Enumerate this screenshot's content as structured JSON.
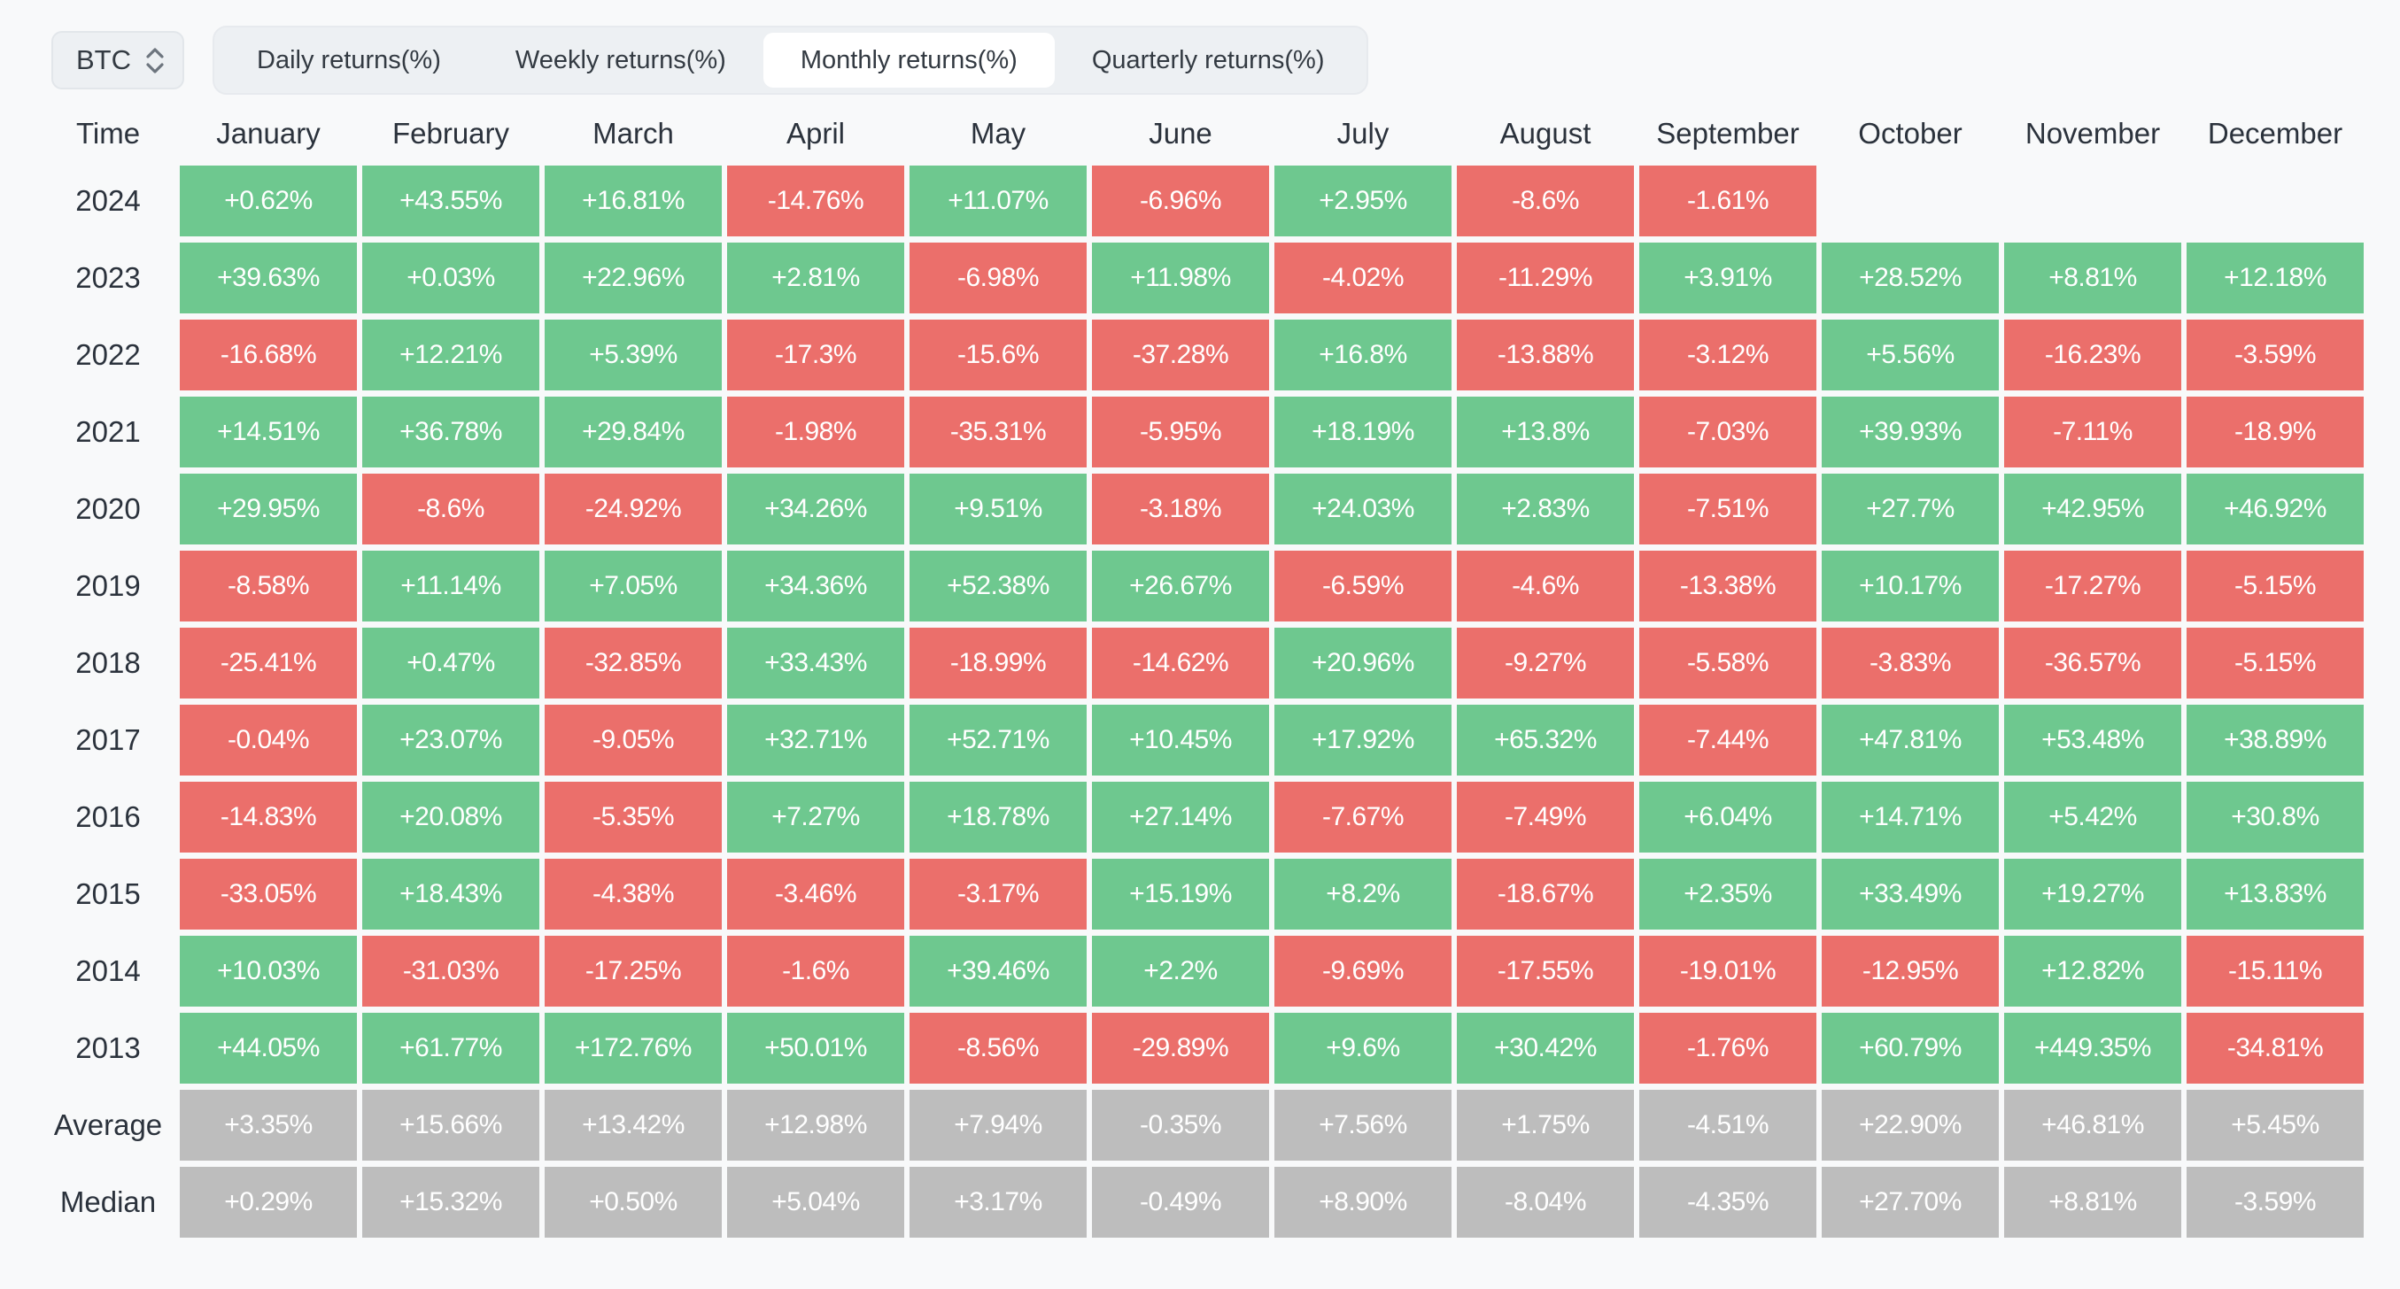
{
  "controls": {
    "asset_selector": {
      "value": "BTC",
      "icon": "select-updown-icon"
    },
    "tabs": [
      {
        "label": "Daily returns(%)",
        "active": false
      },
      {
        "label": "Weekly returns(%)",
        "active": false
      },
      {
        "label": "Monthly returns(%)",
        "active": true
      },
      {
        "label": "Quarterly returns(%)",
        "active": false
      }
    ]
  },
  "table": {
    "columns": [
      "Time",
      "January",
      "February",
      "March",
      "April",
      "May",
      "June",
      "July",
      "August",
      "September",
      "October",
      "November",
      "December"
    ],
    "rows": [
      {
        "label": "2024",
        "kind": "year",
        "values": [
          "+0.62%",
          "+43.55%",
          "+16.81%",
          "-14.76%",
          "+11.07%",
          "-6.96%",
          "+2.95%",
          "-8.6%",
          "-1.61%",
          null,
          null,
          null
        ]
      },
      {
        "label": "2023",
        "kind": "year",
        "values": [
          "+39.63%",
          "+0.03%",
          "+22.96%",
          "+2.81%",
          "-6.98%",
          "+11.98%",
          "-4.02%",
          "-11.29%",
          "+3.91%",
          "+28.52%",
          "+8.81%",
          "+12.18%"
        ]
      },
      {
        "label": "2022",
        "kind": "year",
        "values": [
          "-16.68%",
          "+12.21%",
          "+5.39%",
          "-17.3%",
          "-15.6%",
          "-37.28%",
          "+16.8%",
          "-13.88%",
          "-3.12%",
          "+5.56%",
          "-16.23%",
          "-3.59%"
        ]
      },
      {
        "label": "2021",
        "kind": "year",
        "values": [
          "+14.51%",
          "+36.78%",
          "+29.84%",
          "-1.98%",
          "-35.31%",
          "-5.95%",
          "+18.19%",
          "+13.8%",
          "-7.03%",
          "+39.93%",
          "-7.11%",
          "-18.9%"
        ]
      },
      {
        "label": "2020",
        "kind": "year",
        "values": [
          "+29.95%",
          "-8.6%",
          "-24.92%",
          "+34.26%",
          "+9.51%",
          "-3.18%",
          "+24.03%",
          "+2.83%",
          "-7.51%",
          "+27.7%",
          "+42.95%",
          "+46.92%"
        ]
      },
      {
        "label": "2019",
        "kind": "year",
        "values": [
          "-8.58%",
          "+11.14%",
          "+7.05%",
          "+34.36%",
          "+52.38%",
          "+26.67%",
          "-6.59%",
          "-4.6%",
          "-13.38%",
          "+10.17%",
          "-17.27%",
          "-5.15%"
        ]
      },
      {
        "label": "2018",
        "kind": "year",
        "values": [
          "-25.41%",
          "+0.47%",
          "-32.85%",
          "+33.43%",
          "-18.99%",
          "-14.62%",
          "+20.96%",
          "-9.27%",
          "-5.58%",
          "-3.83%",
          "-36.57%",
          "-5.15%"
        ]
      },
      {
        "label": "2017",
        "kind": "year",
        "values": [
          "-0.04%",
          "+23.07%",
          "-9.05%",
          "+32.71%",
          "+52.71%",
          "+10.45%",
          "+17.92%",
          "+65.32%",
          "-7.44%",
          "+47.81%",
          "+53.48%",
          "+38.89%"
        ]
      },
      {
        "label": "2016",
        "kind": "year",
        "values": [
          "-14.83%",
          "+20.08%",
          "-5.35%",
          "+7.27%",
          "+18.78%",
          "+27.14%",
          "-7.67%",
          "-7.49%",
          "+6.04%",
          "+14.71%",
          "+5.42%",
          "+30.8%"
        ]
      },
      {
        "label": "2015",
        "kind": "year",
        "values": [
          "-33.05%",
          "+18.43%",
          "-4.38%",
          "-3.46%",
          "-3.17%",
          "+15.19%",
          "+8.2%",
          "-18.67%",
          "+2.35%",
          "+33.49%",
          "+19.27%",
          "+13.83%"
        ]
      },
      {
        "label": "2014",
        "kind": "year",
        "values": [
          "+10.03%",
          "-31.03%",
          "-17.25%",
          "-1.6%",
          "+39.46%",
          "+2.2%",
          "-9.69%",
          "-17.55%",
          "-19.01%",
          "-12.95%",
          "+12.82%",
          "-15.11%"
        ]
      },
      {
        "label": "2013",
        "kind": "year",
        "values": [
          "+44.05%",
          "+61.77%",
          "+172.76%",
          "+50.01%",
          "-8.56%",
          "-29.89%",
          "+9.6%",
          "+30.42%",
          "-1.76%",
          "+60.79%",
          "+449.35%",
          "-34.81%"
        ]
      },
      {
        "label": "Average",
        "kind": "summary",
        "values": [
          "+3.35%",
          "+15.66%",
          "+13.42%",
          "+12.98%",
          "+7.94%",
          "-0.35%",
          "+7.56%",
          "+1.75%",
          "-4.51%",
          "+22.90%",
          "+46.81%",
          "+5.45%"
        ]
      },
      {
        "label": "Median",
        "kind": "summary",
        "values": [
          "+0.29%",
          "+15.32%",
          "+0.50%",
          "+5.04%",
          "+3.17%",
          "-0.49%",
          "+8.90%",
          "-8.04%",
          "-4.35%",
          "+27.70%",
          "+8.81%",
          "-3.59%"
        ]
      }
    ]
  },
  "colors": {
    "positive": "#6ec88f",
    "negative": "#eb6f6b",
    "summary": "#bdbdbd",
    "background": "#f8f9fa",
    "control_background": "#edf0f3",
    "active_tab_background": "#ffffff",
    "text_dark": "#2b323c",
    "cell_text": "#ffffff"
  }
}
